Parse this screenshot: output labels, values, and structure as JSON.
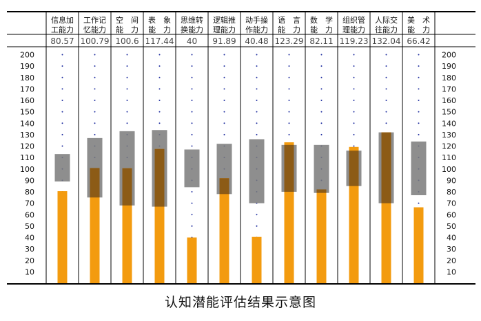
{
  "chart_data": {
    "type": "bar",
    "title": "认知潜能评估结果示意图",
    "ylim": [
      0,
      200
    ],
    "yticks": [
      10,
      20,
      30,
      40,
      50,
      60,
      70,
      80,
      90,
      100,
      110,
      120,
      130,
      140,
      150,
      160,
      170,
      180,
      190,
      200
    ],
    "categories": [
      {
        "line1": "信息加",
        "line2": "工能力"
      },
      {
        "line1": "工作记",
        "line2": "忆能力"
      },
      {
        "line1": "空　间",
        "line2": "能　力"
      },
      {
        "line1": "表　象",
        "line2": "能　力"
      },
      {
        "line1": "思维转",
        "line2": "换能力"
      },
      {
        "line1": "逻辑推",
        "line2": "理能力"
      },
      {
        "line1": "动手操",
        "line2": "作能力"
      },
      {
        "line1": "语　言",
        "line2": "能　力"
      },
      {
        "line1": "数　学",
        "line2": "能　力"
      },
      {
        "line1": "组织管",
        "line2": "理能力"
      },
      {
        "line1": "人际交",
        "line2": "往能力"
      },
      {
        "line1": "美　术",
        "line2": "能　力"
      }
    ],
    "value_labels": [
      "80.57",
      "100.79",
      "100.6",
      "117.44",
      "40",
      "91.89",
      "40.48",
      "123.29",
      "82.11",
      "119.23",
      "132.04",
      "66.42"
    ],
    "values": [
      80.57,
      100.79,
      100.6,
      117.44,
      40,
      91.89,
      40.48,
      123.29,
      82.11,
      119.23,
      132.04,
      66.42
    ],
    "ranges": [
      [
        89,
        113
      ],
      [
        75,
        127
      ],
      [
        68,
        133
      ],
      [
        67,
        134
      ],
      [
        84,
        117
      ],
      [
        78,
        122
      ],
      [
        70,
        126
      ],
      [
        80,
        121
      ],
      [
        79,
        121
      ],
      [
        85,
        116
      ],
      [
        70,
        132
      ],
      [
        77,
        124
      ]
    ],
    "colors": {
      "value_bar": "#f39b0f",
      "range_band": "#7a7a7a",
      "overlap": "#8c5b16",
      "dots": "#1f2ea0",
      "lines": "#000000"
    }
  }
}
